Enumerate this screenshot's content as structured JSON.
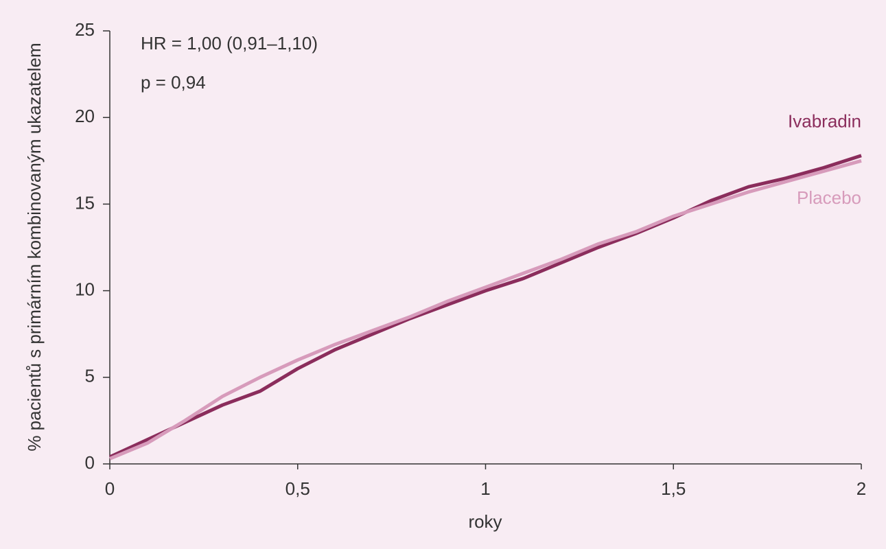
{
  "chart_data": {
    "type": "line",
    "annotations": [
      "HR = 1,00 (0,91–1,10)",
      "p = 0,94"
    ],
    "xlabel": "roky",
    "ylabel": "% pacientů s primárním kombinovaným ukazatelem",
    "x": [
      0,
      0.1,
      0.2,
      0.3,
      0.4,
      0.5,
      0.6,
      0.7,
      0.8,
      0.9,
      1.0,
      1.1,
      1.2,
      1.3,
      1.4,
      1.5,
      1.6,
      1.7,
      1.8,
      1.9,
      2.0
    ],
    "series": [
      {
        "name": "Ivabradin",
        "color": "#8b2d5c",
        "values": [
          0.4,
          1.4,
          2.4,
          3.4,
          4.2,
          5.5,
          6.6,
          7.5,
          8.4,
          9.2,
          10.0,
          10.7,
          11.6,
          12.5,
          13.3,
          14.2,
          15.2,
          16.0,
          16.5,
          17.1,
          17.8
        ]
      },
      {
        "name": "Placebo",
        "color": "#d79bbb",
        "values": [
          0.3,
          1.2,
          2.5,
          3.9,
          5.0,
          6.0,
          6.9,
          7.7,
          8.5,
          9.4,
          10.2,
          11.0,
          11.8,
          12.7,
          13.4,
          14.3,
          15.0,
          15.7,
          16.3,
          16.9,
          17.5
        ]
      }
    ],
    "xlim": [
      0,
      2
    ],
    "xticks": [
      0,
      {
        "value": 0.5,
        "label": "0,5"
      },
      1,
      {
        "value": 1.5,
        "label": "1,5"
      },
      2
    ],
    "ylim": [
      0,
      25
    ],
    "yticks": [
      0,
      5,
      10,
      15,
      20,
      25
    ],
    "grid": false
  }
}
